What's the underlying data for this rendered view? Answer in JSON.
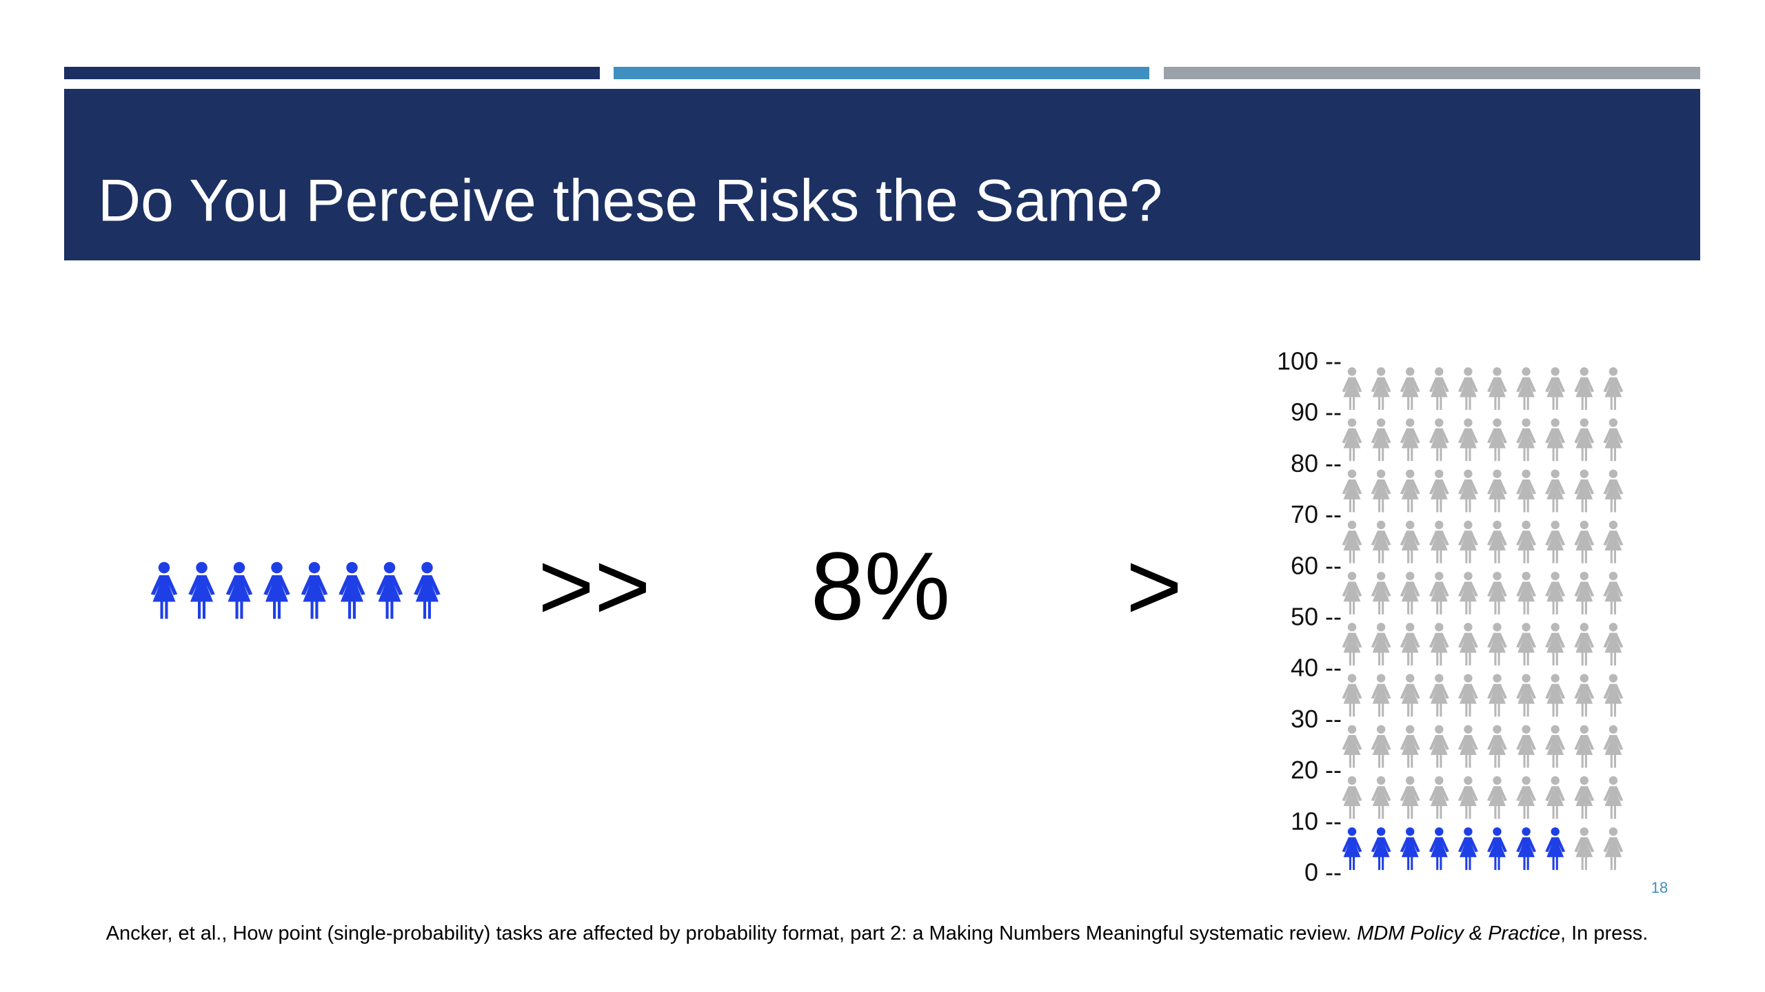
{
  "title": "Do You Perceive these Risks the Same?",
  "left_icons": {
    "count": 8,
    "color": "#1f3fe6"
  },
  "comparisons": [
    ">>",
    "8%",
    ">"
  ],
  "chart_data": {
    "type": "icon-array",
    "ylim": [
      0,
      100
    ],
    "yticks": [
      {
        "value": 0,
        "label": "0 --"
      },
      {
        "value": 10,
        "label": "10 --"
      },
      {
        "value": 20,
        "label": "20 --"
      },
      {
        "value": 30,
        "label": "30 --"
      },
      {
        "value": 40,
        "label": "40 --"
      },
      {
        "value": 50,
        "label": "50 --"
      },
      {
        "value": 60,
        "label": "60 --"
      },
      {
        "value": 70,
        "label": "70 --"
      },
      {
        "value": 80,
        "label": "80 --"
      },
      {
        "value": 90,
        "label": "90 --"
      },
      {
        "value": 100,
        "label": "100 --"
      }
    ],
    "highlighted": 8,
    "highlight_color": "#1f3fe6",
    "base_color": "#b8b8b8"
  },
  "slide_number": "18",
  "citation": {
    "text": "Ancker, et al., How point (single-probability) tasks are affected by probability format, part 2: a Making Numbers Meaningful systematic review. ",
    "journal": "MDM Policy & Practice",
    "tail": ", In press."
  }
}
